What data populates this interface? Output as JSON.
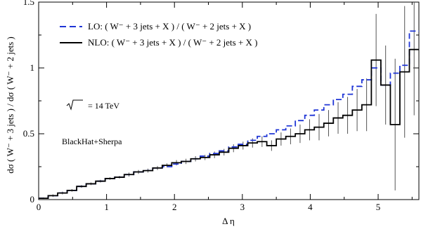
{
  "chart_data": {
    "type": "line",
    "xlabel": "Δ η",
    "ylabel": "dσ ( W⁻ + 3 jets )  /  dσ ( W⁻ + 2 jets )",
    "xlim": [
      0,
      5.6
    ],
    "ylim": [
      0,
      1.5
    ],
    "x_ticks": [
      "0",
      "1",
      "2",
      "3",
      "4",
      "5"
    ],
    "y_ticks": [
      "0",
      "0.5",
      "1",
      "1.5"
    ],
    "legend_position": "top-left",
    "bin_edges": [
      0,
      0.14,
      0.28,
      0.42,
      0.56,
      0.7,
      0.84,
      0.98,
      1.12,
      1.26,
      1.4,
      1.54,
      1.68,
      1.82,
      1.96,
      2.1,
      2.24,
      2.38,
      2.52,
      2.66,
      2.8,
      2.94,
      3.08,
      3.22,
      3.36,
      3.5,
      3.64,
      3.78,
      3.92,
      4.06,
      4.2,
      4.34,
      4.48,
      4.62,
      4.76,
      4.9,
      5.04,
      5.18,
      5.32,
      5.46,
      5.6
    ],
    "series": [
      {
        "name": "LO:  ( W⁻ + 3 jets + X )  /  ( W⁻ + 2 jets + X )",
        "color": "#1f35d6",
        "style": "dashed-step",
        "values": [
          0.01,
          0.03,
          0.05,
          0.07,
          0.1,
          0.12,
          0.14,
          0.16,
          0.17,
          0.19,
          0.21,
          0.22,
          0.24,
          0.25,
          0.27,
          0.29,
          0.31,
          0.33,
          0.35,
          0.37,
          0.4,
          0.42,
          0.45,
          0.48,
          0.5,
          0.53,
          0.56,
          0.6,
          0.64,
          0.68,
          0.72,
          0.76,
          0.8,
          0.86,
          0.91,
          1.0,
          0.87,
          0.96,
          1.02,
          1.28
        ]
      },
      {
        "name": "NLO:  ( W⁻ + 3 jets + X )  /  ( W⁻ + 2 jets + X )",
        "color": "#000000",
        "style": "solid-step",
        "values": [
          0.01,
          0.03,
          0.05,
          0.07,
          0.1,
          0.12,
          0.14,
          0.16,
          0.17,
          0.19,
          0.21,
          0.22,
          0.24,
          0.26,
          0.28,
          0.29,
          0.31,
          0.32,
          0.34,
          0.36,
          0.39,
          0.41,
          0.43,
          0.44,
          0.41,
          0.46,
          0.48,
          0.5,
          0.53,
          0.55,
          0.58,
          0.62,
          0.64,
          0.68,
          0.72,
          1.06,
          0.87,
          0.57,
          0.97,
          1.14
        ],
        "error_half_widths": [
          0.005,
          0.01,
          0.01,
          0.01,
          0.01,
          0.01,
          0.01,
          0.01,
          0.01,
          0.015,
          0.015,
          0.015,
          0.015,
          0.015,
          0.02,
          0.02,
          0.02,
          0.02,
          0.025,
          0.025,
          0.03,
          0.03,
          0.035,
          0.04,
          0.04,
          0.05,
          0.06,
          0.07,
          0.08,
          0.1,
          0.1,
          0.12,
          0.14,
          0.16,
          0.2,
          0.35,
          0.3,
          0.5,
          0.5,
          0.5
        ]
      }
    ],
    "annotations": {
      "energy_prefix": "√s",
      "energy_value": "=  14 TeV",
      "generator": "BlackHat+Sherpa"
    }
  }
}
